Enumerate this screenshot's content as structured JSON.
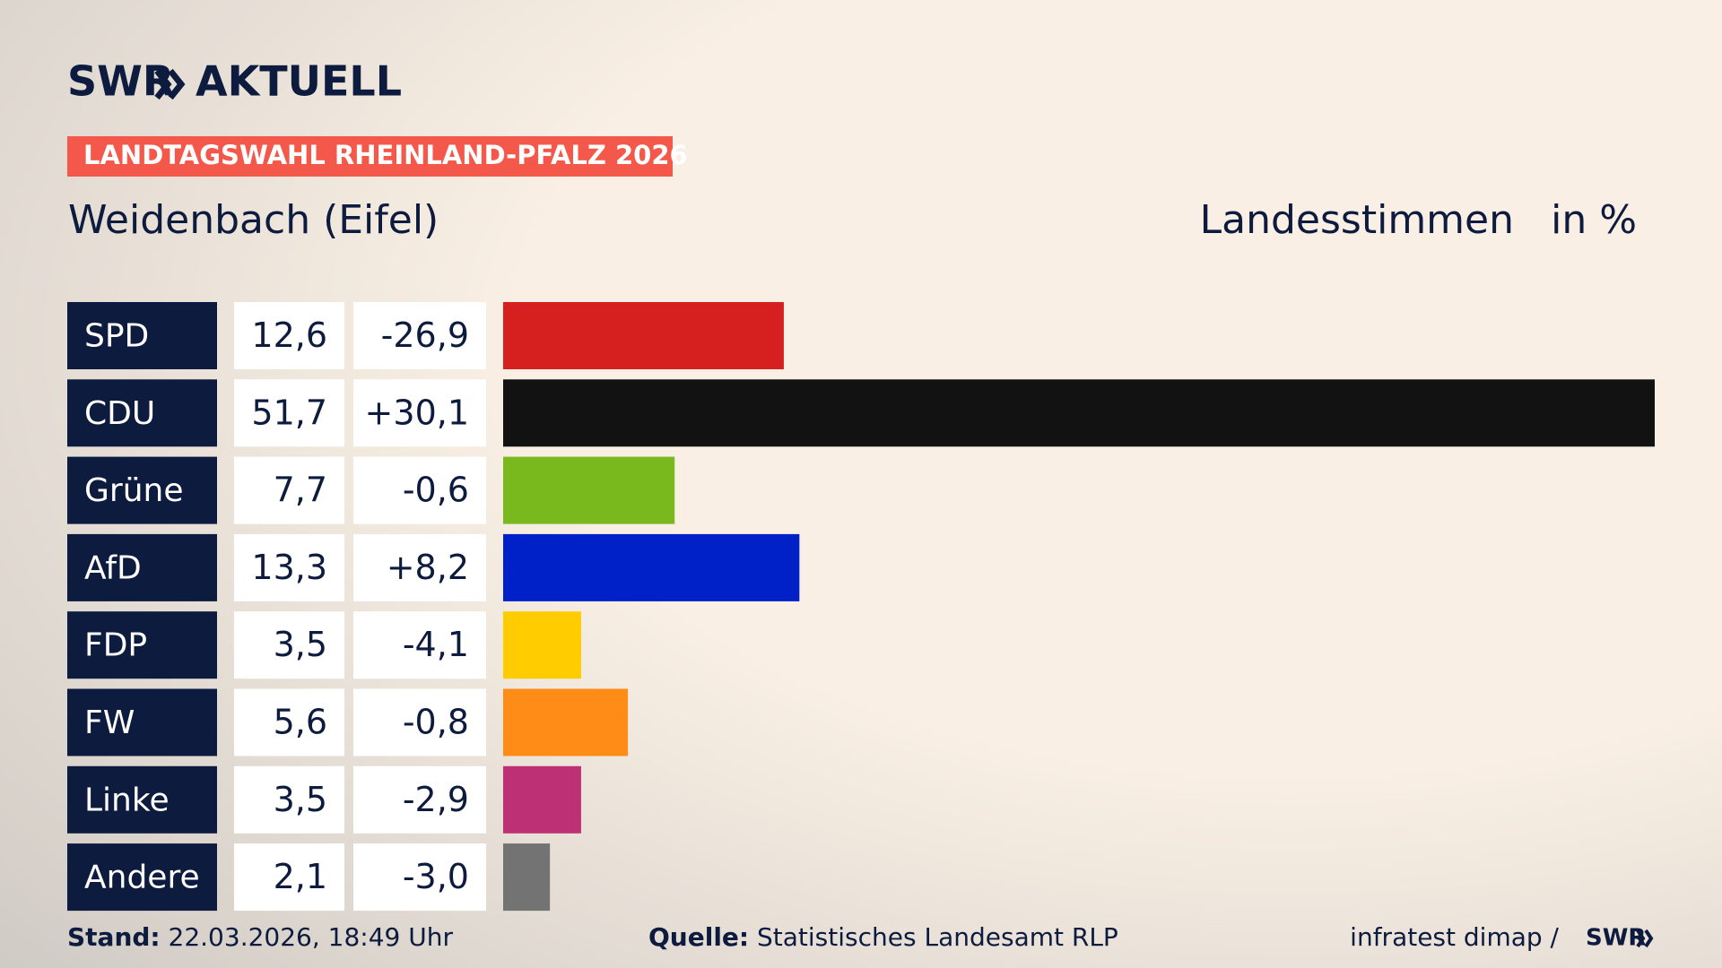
{
  "header": {
    "brand": "SWR",
    "product": "AKTUELL",
    "tag": "LANDTAGSWAHL RHEINLAND-PFALZ 2026"
  },
  "chart_data": {
    "type": "bar",
    "title": "Weidenbach (Eifel)",
    "measure": "Landesstimmen",
    "unit": "in %",
    "categories": [
      "SPD",
      "CDU",
      "Grüne",
      "AfD",
      "FDP",
      "FW",
      "Linke",
      "Andere"
    ],
    "values": [
      12.6,
      51.7,
      7.7,
      13.3,
      3.5,
      5.6,
      3.5,
      2.1
    ],
    "value_labels": [
      "12,6",
      "51,7",
      "7,7",
      "13,3",
      "3,5",
      "5,6",
      "3,5",
      "2,1"
    ],
    "changes": {
      "values": [
        -26.9,
        30.1,
        -0.6,
        8.2,
        -4.1,
        -0.8,
        -2.9,
        -3.0
      ],
      "labels": [
        "-26,9",
        "+30,1",
        "-0,6",
        "+8,2",
        "-4,1",
        "-0,8",
        "-2,9",
        "-3,0"
      ]
    },
    "colors": [
      "#d61f1f",
      "#121212",
      "#7ab91e",
      "#0020c8",
      "#ffcc00",
      "#ff8c17",
      "#be3075",
      "#737373"
    ]
  },
  "footer": {
    "stand_label": "Stand:",
    "stand": "22.03.2026, 18:49 Uhr",
    "source_label": "Quelle:",
    "source": "Statistisches Landesamt RLP",
    "credit": "infratest dimap /",
    "brand": "SWR"
  }
}
